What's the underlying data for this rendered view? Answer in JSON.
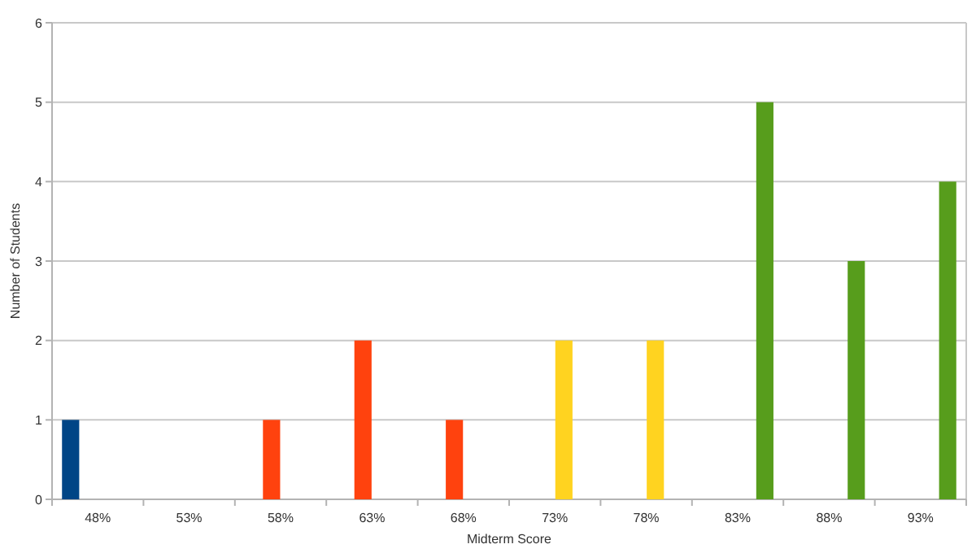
{
  "chart_data": {
    "type": "bar",
    "xlabel": "Midterm Score",
    "ylabel": "Number of Students",
    "categories": [
      "48%",
      "53%",
      "58%",
      "63%",
      "68%",
      "73%",
      "78%",
      "83%",
      "88%",
      "93%"
    ],
    "series": [
      {
        "color": "#004586",
        "values": [
          1,
          null,
          null,
          null,
          null,
          null,
          null,
          null,
          null,
          null
        ]
      },
      {
        "color": "#ff420e",
        "values": [
          null,
          null,
          1,
          2,
          1,
          null,
          null,
          null,
          null,
          null
        ]
      },
      {
        "color": "#ffd320",
        "values": [
          null,
          null,
          null,
          null,
          null,
          2,
          2,
          null,
          null,
          null
        ]
      },
      {
        "color": "#579d1c",
        "values": [
          null,
          null,
          null,
          null,
          null,
          null,
          null,
          5,
          3,
          4
        ]
      }
    ],
    "ylim": [
      0,
      6
    ],
    "yticks": [
      0,
      1,
      2,
      3,
      4,
      5,
      6
    ],
    "grid": "y"
  }
}
